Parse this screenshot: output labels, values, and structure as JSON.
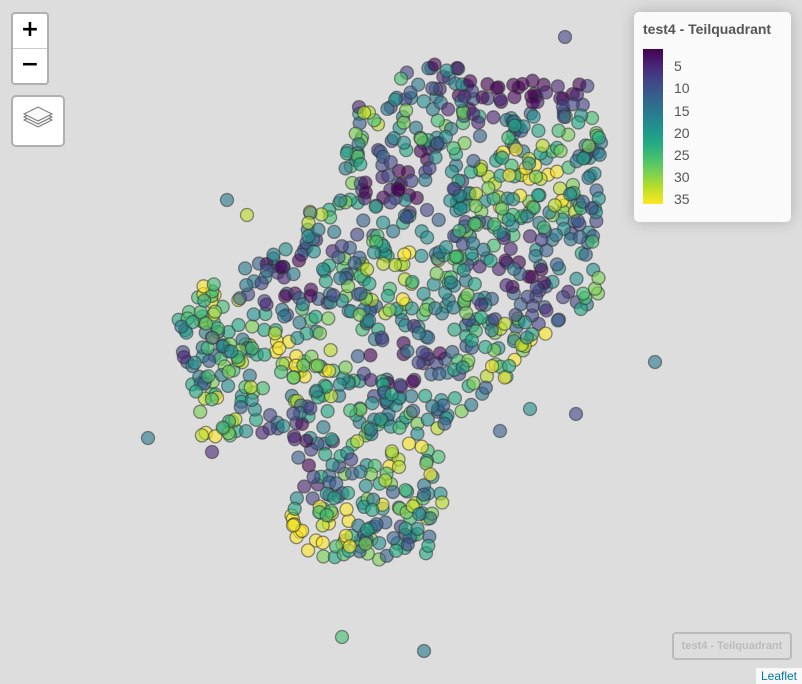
{
  "legend": {
    "title": "test4 - Teilquadrant",
    "labels": [
      "5",
      "10",
      "15",
      "20",
      "25",
      "30",
      "35"
    ]
  },
  "controls": {
    "zoom_in": "+",
    "zoom_out": "−"
  },
  "info_box": "test4 - Teilquadrant",
  "attribution": "Leaflet",
  "colors": {
    "background": "#dddddd",
    "palette": [
      "#440154",
      "#482475",
      "#414487",
      "#355f8d",
      "#2a788e",
      "#21908d",
      "#22a884",
      "#43bf71",
      "#7ad151",
      "#bddf26",
      "#fde725"
    ]
  },
  "icons": [
    "layers-icon"
  ]
}
